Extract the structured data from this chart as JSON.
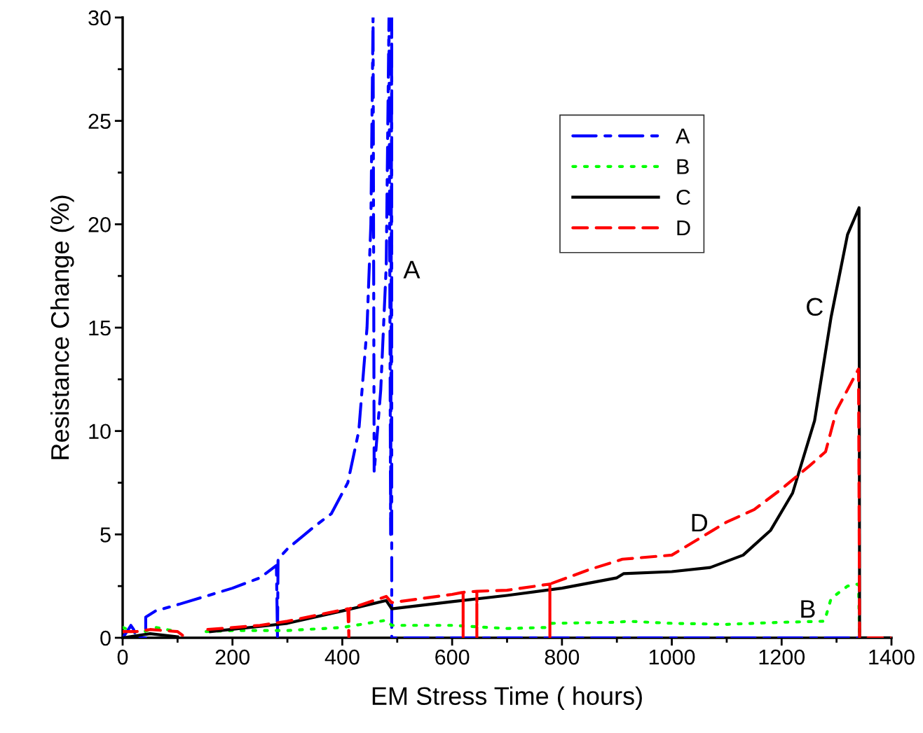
{
  "chart_data": {
    "type": "line",
    "xlabel": "EM Stress Time ( hours)",
    "ylabel": "Resistance Change (%)",
    "xlim": [
      0,
      1400
    ],
    "xticks": [
      0,
      200,
      400,
      600,
      800,
      1000,
      1200,
      1400
    ],
    "ylim": [
      0,
      30
    ],
    "yticks": [
      0,
      5,
      10,
      15,
      20,
      25,
      30
    ],
    "grid": false,
    "legend": "top right",
    "marker": "none",
    "series": [
      {
        "name": "A",
        "color": "#0000ff",
        "line_style": "dashdot",
        "x": [
          0,
          8,
          15,
          20,
          25,
          40,
          42,
          42,
          60,
          100,
          150,
          200,
          250,
          280,
          282,
          283,
          300,
          350,
          380,
          410,
          430,
          445,
          452,
          456,
          458,
          470,
          480,
          485,
          488,
          490,
          490,
          520,
          700,
          1000,
          1400
        ],
        "values": [
          0,
          0.3,
          0.6,
          0.4,
          0,
          0,
          0,
          1,
          1.3,
          1.6,
          2.0,
          2.4,
          2.9,
          3.5,
          0,
          3.8,
          4.3,
          5.4,
          6.0,
          7.5,
          10,
          15,
          20,
          30,
          8,
          12,
          18,
          30,
          5,
          30,
          0,
          0,
          0,
          0,
          0
        ]
      },
      {
        "name": "B",
        "color": "#00ff00",
        "line_style": "dotted",
        "x": [
          0,
          20,
          40,
          60,
          100,
          110,
          130,
          152,
          200,
          300,
          400,
          480,
          490,
          600,
          700,
          775,
          780,
          900,
          920,
          1000,
          1100,
          1200,
          1278,
          1290,
          1320,
          1340,
          1342,
          1400
        ],
        "values": [
          0.5,
          0.3,
          0.3,
          0.5,
          0.3,
          null,
          null,
          0.3,
          0.35,
          0.35,
          0.5,
          0.85,
          0.6,
          0.6,
          0.45,
          0.5,
          0.7,
          0.75,
          0.8,
          0.7,
          0.65,
          0.75,
          0.8,
          1.9,
          2.5,
          2.6,
          0,
          0
        ]
      },
      {
        "name": "C",
        "color": "#000000",
        "line_style": "solid",
        "x": [
          0,
          50,
          100,
          130,
          160,
          250,
          300,
          400,
          480,
          490,
          600,
          700,
          800,
          900,
          912,
          1000,
          1070,
          1130,
          1180,
          1220,
          1260,
          1290,
          1320,
          1341,
          1342,
          1400
        ],
        "values": [
          0,
          0.2,
          0.05,
          null,
          0.3,
          0.55,
          0.7,
          1.3,
          1.8,
          1.4,
          1.75,
          2.05,
          2.4,
          2.9,
          3.1,
          3.2,
          3.4,
          4.0,
          5.2,
          7.0,
          10.5,
          15.5,
          19.5,
          20.8,
          0,
          0
        ]
      },
      {
        "name": "D",
        "color": "#ff0000",
        "line_style": "dashed",
        "x": [
          0,
          25,
          50,
          100,
          110,
          130,
          155,
          250,
          300,
          410,
          412,
          412,
          480,
          490,
          600,
          620,
          620,
          620,
          645,
          645,
          645,
          700,
          778,
          778,
          778,
          850,
          910,
          1000,
          1050,
          1100,
          1150,
          1200,
          1250,
          1280,
          1300,
          1340,
          1342,
          1400
        ],
        "values": [
          0.3,
          0.3,
          0.4,
          0.3,
          0.1,
          null,
          0.4,
          0.6,
          0.8,
          1.4,
          0,
          1.4,
          2.0,
          1.7,
          2.1,
          2.2,
          0,
          2.2,
          2.25,
          0,
          2.25,
          2.3,
          2.6,
          0,
          2.6,
          3.3,
          3.8,
          4.0,
          4.8,
          5.6,
          6.2,
          7.2,
          8.3,
          9.0,
          11,
          13,
          0,
          0
        ]
      }
    ],
    "annotations": [
      "A",
      "B",
      "C",
      "D"
    ]
  }
}
